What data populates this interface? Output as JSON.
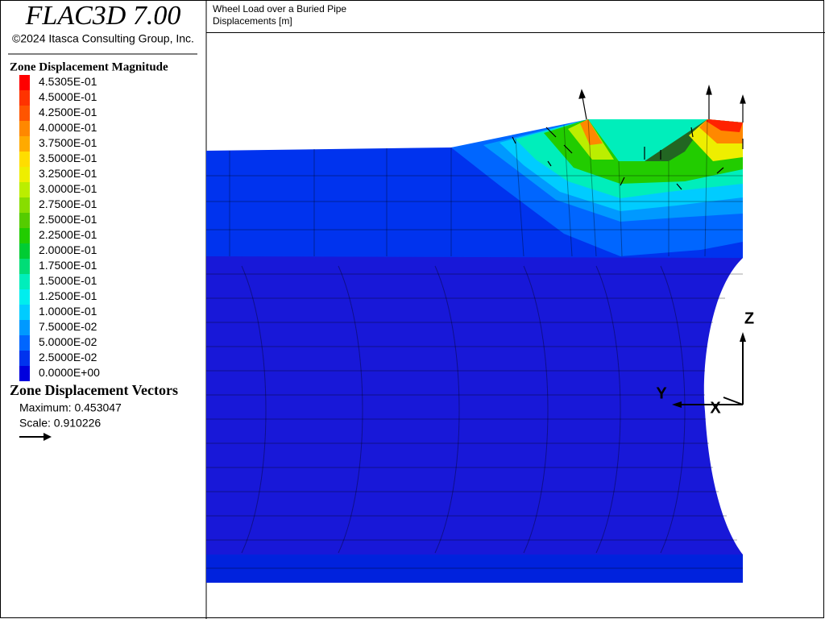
{
  "header": {
    "title": "FLAC3D 7.00",
    "copyright": "©2024 Itasca Consulting Group, Inc."
  },
  "legend": {
    "title": "Zone Displacement Magnitude",
    "levels": [
      {
        "label": "4.5305E-01",
        "color": "#ff0000"
      },
      {
        "label": "4.5000E-01",
        "color": "#ff3300"
      },
      {
        "label": "4.2500E-01",
        "color": "#ff5500"
      },
      {
        "label": "4.0000E-01",
        "color": "#ff8800"
      },
      {
        "label": "3.7500E-01",
        "color": "#ffaa00"
      },
      {
        "label": "3.5000E-01",
        "color": "#ffdd00"
      },
      {
        "label": "3.2500E-01",
        "color": "#eeee00"
      },
      {
        "label": "3.0000E-01",
        "color": "#bbee00"
      },
      {
        "label": "2.7500E-01",
        "color": "#88dd00"
      },
      {
        "label": "2.5000E-01",
        "color": "#55cc00"
      },
      {
        "label": "2.2500E-01",
        "color": "#22cc00"
      },
      {
        "label": "2.0000E-01",
        "color": "#00cc33"
      },
      {
        "label": "1.7500E-01",
        "color": "#00dd77"
      },
      {
        "label": "1.5000E-01",
        "color": "#00eebb"
      },
      {
        "label": "1.2500E-01",
        "color": "#00eeee"
      },
      {
        "label": "1.0000E-01",
        "color": "#00ccff"
      },
      {
        "label": "7.5000E-02",
        "color": "#0099ff"
      },
      {
        "label": "5.0000E-02",
        "color": "#0066ff"
      },
      {
        "label": "2.5000E-02",
        "color": "#0033ee"
      },
      {
        "label": "0.0000E+00",
        "color": "#0000dd"
      }
    ]
  },
  "vectors": {
    "title": "Zone Displacement Vectors",
    "maximum": "Maximum: 0.453047",
    "scale": "Scale: 0.910226"
  },
  "plot": {
    "title": "Wheel Load over a Buried Pipe",
    "subtitle": "Displacements [m]",
    "axes": {
      "z": "Z",
      "y": "Y",
      "x": "X"
    }
  }
}
